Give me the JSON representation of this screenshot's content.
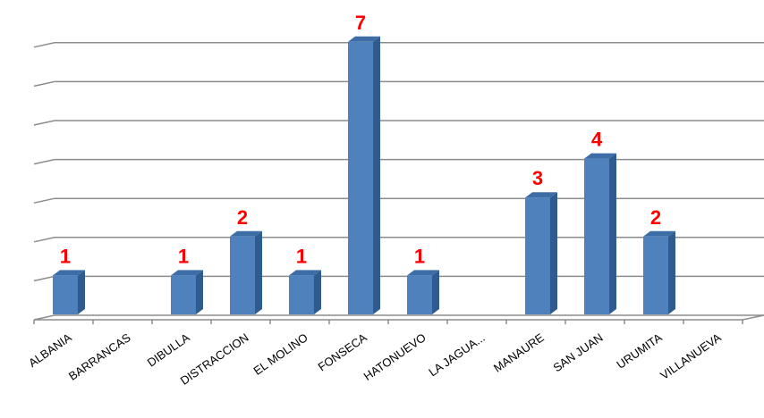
{
  "chart_data": {
    "type": "bar",
    "categories": [
      "ALBANIA",
      "BARRANCAS",
      "DIBULLA",
      "DISTRACCION",
      "EL MOLINO",
      "FONSECA",
      "HATONUEVO",
      "LA JAGUA...",
      "MANAURE",
      "SAN JUAN",
      "URUMITA",
      "VILLANUEVA"
    ],
    "values": [
      1,
      0,
      1,
      2,
      1,
      7,
      1,
      0,
      3,
      4,
      2,
      0
    ],
    "data_labels": [
      "1",
      "",
      "1",
      "2",
      "1",
      "7",
      "1",
      "",
      "3",
      "4",
      "2",
      ""
    ],
    "ylim": [
      0,
      7
    ],
    "grid": true,
    "legend": "none",
    "colors": {
      "bar_front": "#4f81bd",
      "bar_side": "#2f5b8f",
      "bar_top": "#3c6da6",
      "data_label": "#ff0000",
      "grid": "#8c8c8c"
    }
  }
}
